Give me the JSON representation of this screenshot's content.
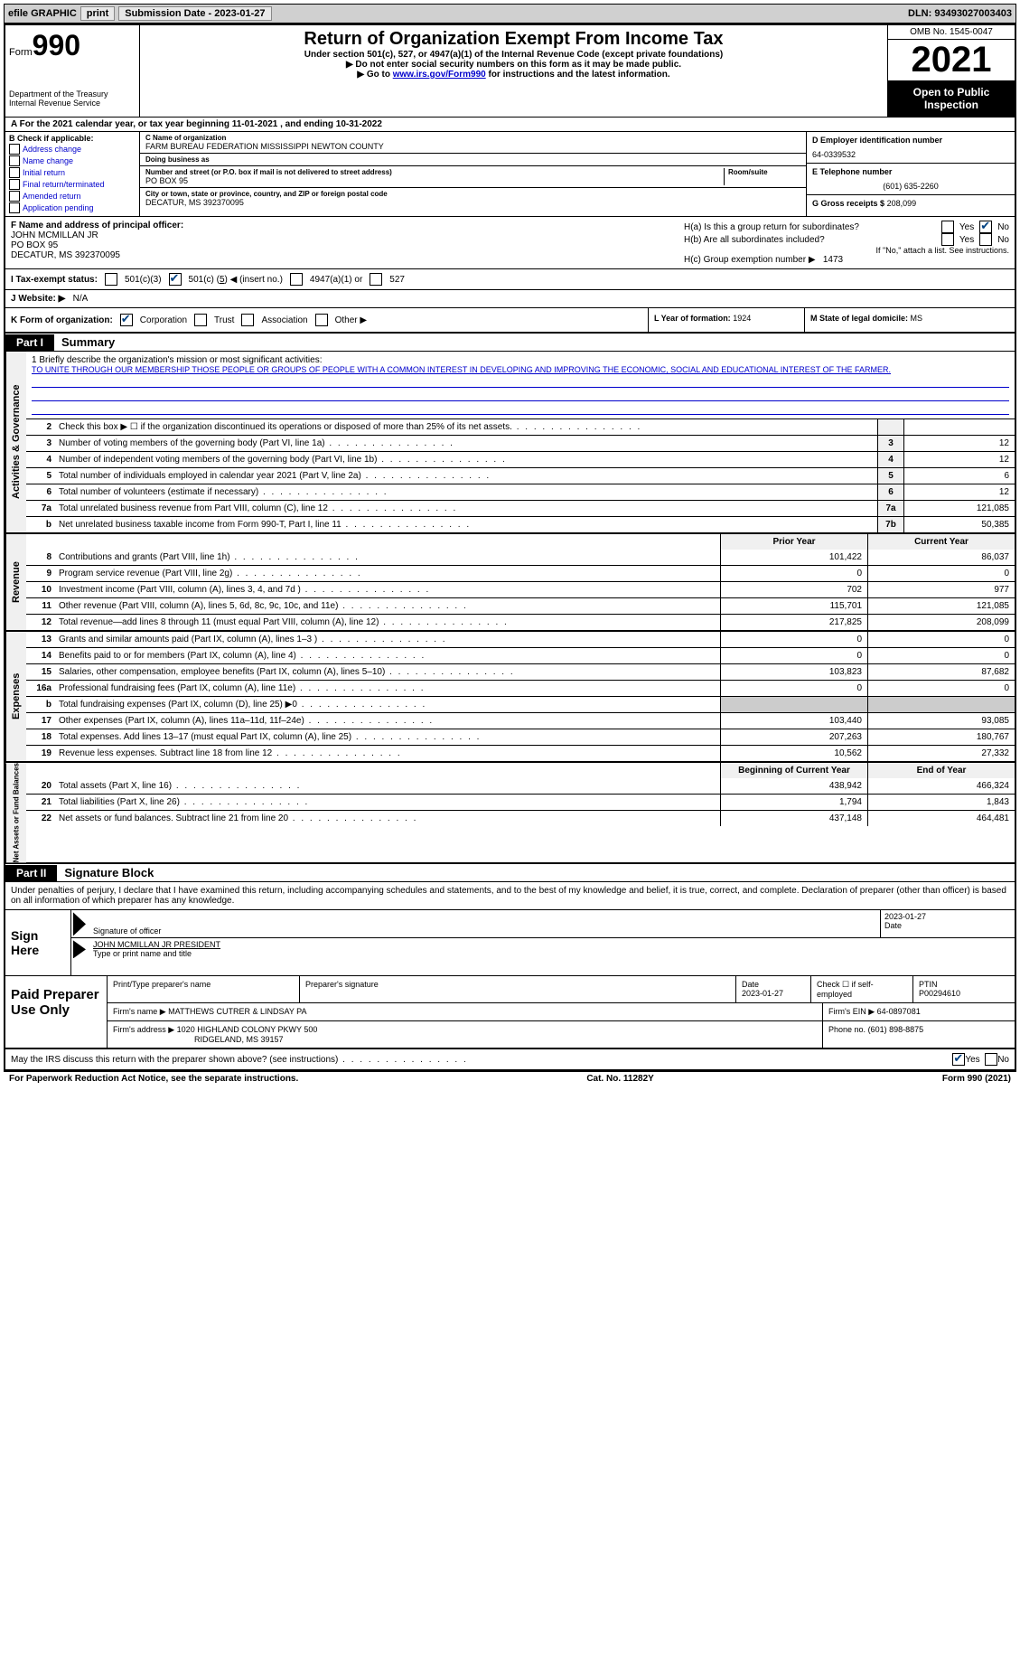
{
  "topbar": {
    "efile": "efile GRAPHIC",
    "print": "print",
    "submission": "Submission Date - 2023-01-27",
    "dln": "DLN: 93493027003403"
  },
  "header": {
    "form_small": "Form",
    "form_no": "990",
    "dept": "Department of the Treasury Internal Revenue Service",
    "title": "Return of Organization Exempt From Income Tax",
    "sub1": "Under section 501(c), 527, or 4947(a)(1) of the Internal Revenue Code (except private foundations)",
    "sub2": "▶ Do not enter social security numbers on this form as it may be made public.",
    "sub3_pre": "▶ Go to ",
    "sub3_link": "www.irs.gov/Form990",
    "sub3_post": " for instructions and the latest information.",
    "omb": "OMB No. 1545-0047",
    "year": "2021",
    "opentopublic": "Open to Public Inspection"
  },
  "row_a": "A For the 2021 calendar year, or tax year beginning 11-01-2021   , and ending 10-31-2022",
  "col_b": {
    "label": "B Check if applicable:",
    "items": [
      "Address change",
      "Name change",
      "Initial return",
      "Final return/terminated",
      "Amended return",
      "Application pending"
    ]
  },
  "col_c": {
    "name_lbl": "C Name of organization",
    "name": "FARM BUREAU FEDERATION MISSISSIPPI NEWTON COUNTY",
    "dba_lbl": "Doing business as",
    "dba": "",
    "addr_lbl": "Number and street (or P.O. box if mail is not delivered to street address)",
    "room_lbl": "Room/suite",
    "addr": "PO BOX 95",
    "city_lbl": "City or town, state or province, country, and ZIP or foreign postal code",
    "city": "DECATUR, MS  392370095"
  },
  "col_d": {
    "ein_lbl": "D Employer identification number",
    "ein": "64-0339532",
    "tel_lbl": "E Telephone number",
    "tel": "(601) 635-2260",
    "gross_lbl": "G Gross receipts $",
    "gross": "208,099"
  },
  "row_f": {
    "f_lbl": "F Name and address of principal officer:",
    "f_name": "JOHN MCMILLAN JR",
    "f_addr1": "PO BOX 95",
    "f_addr2": "DECATUR, MS  392370095",
    "ha": "H(a)  Is this a group return for subordinates?",
    "hb": "H(b)  Are all subordinates included?",
    "hb_note": "If \"No,\" attach a list. See instructions.",
    "hc": "H(c)  Group exemption number ▶",
    "hc_val": "1473"
  },
  "row_i": {
    "lbl": "I  Tax-exempt status:",
    "a": "501(c)(3)",
    "b": "501(c) (",
    "b_num": "5",
    "b_post": ") ◀ (insert no.)",
    "c": "4947(a)(1) or",
    "d": "527"
  },
  "row_j": {
    "lbl": "J  Website: ▶",
    "val": "N/A"
  },
  "row_k": {
    "lbl": "K Form of organization:",
    "opts": [
      "Corporation",
      "Trust",
      "Association",
      "Other ▶"
    ],
    "l_lbl": "L Year of formation:",
    "l_val": "1924",
    "m_lbl": "M State of legal domicile:",
    "m_val": "MS"
  },
  "part1": {
    "tag": "Part I",
    "title": "Summary"
  },
  "mission": {
    "lbl": "1   Briefly describe the organization's mission or most significant activities:",
    "text": "TO UNITE THROUGH OUR MEMBERSHIP THOSE PEOPLE OR GROUPS OF PEOPLE WITH A COMMON INTEREST IN DEVELOPING AND IMPROVING THE ECONOMIC, SOCIAL AND EDUCATIONAL INTEREST OF THE FARMER."
  },
  "lines_ag": [
    {
      "n": "2",
      "t": "Check this box ▶ ☐ if the organization discontinued its operations or disposed of more than 25% of its net assets.",
      "box": "",
      "v": ""
    },
    {
      "n": "3",
      "t": "Number of voting members of the governing body (Part VI, line 1a)",
      "box": "3",
      "v": "12"
    },
    {
      "n": "4",
      "t": "Number of independent voting members of the governing body (Part VI, line 1b)",
      "box": "4",
      "v": "12"
    },
    {
      "n": "5",
      "t": "Total number of individuals employed in calendar year 2021 (Part V, line 2a)",
      "box": "5",
      "v": "6"
    },
    {
      "n": "6",
      "t": "Total number of volunteers (estimate if necessary)",
      "box": "6",
      "v": "12"
    },
    {
      "n": "7a",
      "t": "Total unrelated business revenue from Part VIII, column (C), line 12",
      "box": "7a",
      "v": "121,085"
    },
    {
      "n": "b",
      "t": "Net unrelated business taxable income from Form 990-T, Part I, line 11",
      "box": "7b",
      "v": "50,385"
    }
  ],
  "head_cols": {
    "prior": "Prior Year",
    "current": "Current Year"
  },
  "lines_rev": [
    {
      "n": "8",
      "t": "Contributions and grants (Part VIII, line 1h)",
      "p": "101,422",
      "c": "86,037"
    },
    {
      "n": "9",
      "t": "Program service revenue (Part VIII, line 2g)",
      "p": "0",
      "c": "0"
    },
    {
      "n": "10",
      "t": "Investment income (Part VIII, column (A), lines 3, 4, and 7d )",
      "p": "702",
      "c": "977"
    },
    {
      "n": "11",
      "t": "Other revenue (Part VIII, column (A), lines 5, 6d, 8c, 9c, 10c, and 11e)",
      "p": "115,701",
      "c": "121,085"
    },
    {
      "n": "12",
      "t": "Total revenue—add lines 8 through 11 (must equal Part VIII, column (A), line 12)",
      "p": "217,825",
      "c": "208,099"
    }
  ],
  "lines_exp": [
    {
      "n": "13",
      "t": "Grants and similar amounts paid (Part IX, column (A), lines 1–3 )",
      "p": "0",
      "c": "0"
    },
    {
      "n": "14",
      "t": "Benefits paid to or for members (Part IX, column (A), line 4)",
      "p": "0",
      "c": "0"
    },
    {
      "n": "15",
      "t": "Salaries, other compensation, employee benefits (Part IX, column (A), lines 5–10)",
      "p": "103,823",
      "c": "87,682"
    },
    {
      "n": "16a",
      "t": "Professional fundraising fees (Part IX, column (A), line 11e)",
      "p": "0",
      "c": "0"
    },
    {
      "n": "b",
      "t": "Total fundraising expenses (Part IX, column (D), line 25) ▶0",
      "p": "",
      "c": "",
      "gray": true
    },
    {
      "n": "17",
      "t": "Other expenses (Part IX, column (A), lines 11a–11d, 11f–24e)",
      "p": "103,440",
      "c": "93,085"
    },
    {
      "n": "18",
      "t": "Total expenses. Add lines 13–17 (must equal Part IX, column (A), line 25)",
      "p": "207,263",
      "c": "180,767"
    },
    {
      "n": "19",
      "t": "Revenue less expenses. Subtract line 18 from line 12",
      "p": "10,562",
      "c": "27,332"
    }
  ],
  "head_cols2": {
    "prior": "Beginning of Current Year",
    "current": "End of Year"
  },
  "lines_net": [
    {
      "n": "20",
      "t": "Total assets (Part X, line 16)",
      "p": "438,942",
      "c": "466,324"
    },
    {
      "n": "21",
      "t": "Total liabilities (Part X, line 26)",
      "p": "1,794",
      "c": "1,843"
    },
    {
      "n": "22",
      "t": "Net assets or fund balances. Subtract line 21 from line 20",
      "p": "437,148",
      "c": "464,481"
    }
  ],
  "part2": {
    "tag": "Part II",
    "title": "Signature Block"
  },
  "sig": {
    "intro": "Under penalties of perjury, I declare that I have examined this return, including accompanying schedules and statements, and to the best of my knowledge and belief, it is true, correct, and complete. Declaration of preparer (other than officer) is based on all information of which preparer has any knowledge.",
    "signhere": "Sign Here",
    "sig_of_officer": "Signature of officer",
    "date": "2023-01-27",
    "date_lbl": "Date",
    "typed": "JOHN MCMILLAN JR  PRESIDENT",
    "typed_lbl": "Type or print name and title"
  },
  "prep": {
    "label": "Paid Preparer Use Only",
    "h1": "Print/Type preparer's name",
    "h2": "Preparer's signature",
    "h3_date": "Date",
    "h3_date_v": "2023-01-27",
    "h4": "Check ☐ if self-employed",
    "h5": "PTIN",
    "h5_v": "P00294610",
    "firm_lbl": "Firm's name    ▶",
    "firm": "MATTHEWS CUTRER & LINDSAY PA",
    "ein_lbl": "Firm's EIN ▶",
    "ein": "64-0897081",
    "addr_lbl": "Firm's address ▶",
    "addr1": "1020 HIGHLAND COLONY PKWY 500",
    "addr2": "RIDGELAND, MS  39157",
    "phone_lbl": "Phone no.",
    "phone": "(601) 898-8875"
  },
  "may": "May the IRS discuss this return with the preparer shown above? (see instructions)",
  "footer": {
    "left": "For Paperwork Reduction Act Notice, see the separate instructions.",
    "mid": "Cat. No. 11282Y",
    "right": "Form 990 (2021)"
  },
  "vtabs": {
    "ag": "Activities & Governance",
    "rev": "Revenue",
    "exp": "Expenses",
    "net": "Net Assets or Fund Balances"
  }
}
